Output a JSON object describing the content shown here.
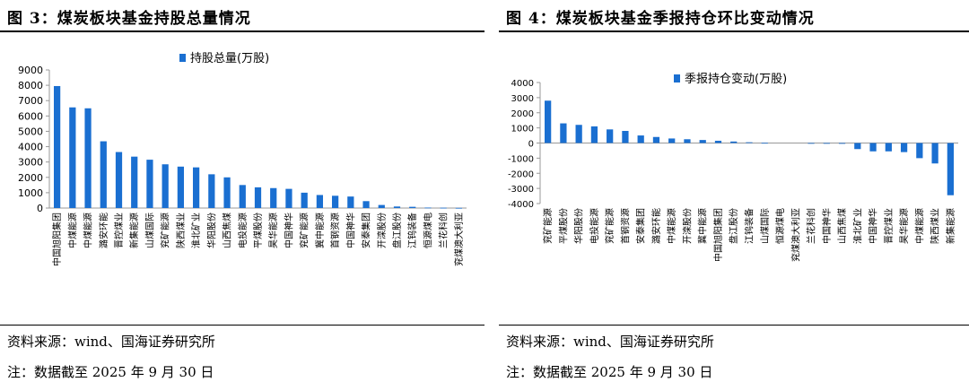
{
  "left": {
    "title": "图 3：煤炭板块基金持股总量情况",
    "source": "资料来源：wind、国海证券研究所",
    "note": "注：数据截至 2025 年 9 月 30 日"
  },
  "right": {
    "title": "图 4：煤炭板块基金季报持仓环比变动情况",
    "source": "资料来源：wind、国海证券研究所",
    "note": "注：数据截至 2025 年 9 月 30 日"
  },
  "chart_data": [
    {
      "type": "bar",
      "title": "",
      "xlabel": "",
      "ylabel": "",
      "ylim": [
        0,
        9000
      ],
      "yticks": [
        0,
        1000,
        2000,
        3000,
        4000,
        5000,
        6000,
        7000,
        8000,
        9000
      ],
      "legend_position": "top-center",
      "grid": false,
      "color": "#1a6fd1",
      "categories": [
        "中国旭阳集团",
        "中煤能源",
        "中煤能源",
        "潞安环能",
        "晋控煤业",
        "新集能源",
        "山煤国际",
        "兖矿能源",
        "陕西煤业",
        "淮北矿业",
        "华阳股份",
        "山西焦煤",
        "电投能源",
        "平煤股份",
        "昊华能源",
        "中国神华",
        "兖矿能源",
        "冀中能源",
        "首钢资源",
        "中国神华",
        "安泰集团",
        "开滦股份",
        "盘江股份",
        "江钨装备",
        "恒源煤电",
        "兰花科创",
        "兖煤澳大利亚"
      ],
      "series": [
        {
          "name": "持股总量(万股)",
          "values": [
            7950,
            6560,
            6500,
            4350,
            3650,
            3350,
            3150,
            2850,
            2700,
            2650,
            2200,
            2000,
            1500,
            1350,
            1300,
            1250,
            1000,
            850,
            800,
            750,
            450,
            200,
            100,
            80,
            30,
            20,
            10
          ]
        }
      ]
    },
    {
      "type": "bar",
      "title": "",
      "xlabel": "",
      "ylabel": "",
      "ylim": [
        -4000,
        4000
      ],
      "yticks": [
        -4000,
        -3000,
        -2000,
        -1000,
        0,
        1000,
        2000,
        3000,
        4000
      ],
      "legend_position": "top-center",
      "grid": false,
      "color": "#1a6fd1",
      "categories": [
        "兖矿能源",
        "平煤股份",
        "华阳股份",
        "电投能源",
        "兖矿能源",
        "首钢资源",
        "安泰集团",
        "潞安环能",
        "中煤能源",
        "开滦股份",
        "冀中能源",
        "中国旭阳集团",
        "盘江股份",
        "江钨装备",
        "山煤国际",
        "恒源煤电",
        "兖煤澳大利亚",
        "兰花科创",
        "中国神华",
        "山西焦煤",
        "淮北矿业",
        "中国神华",
        "晋控煤业",
        "昊华能源",
        "中煤能源",
        "陕西煤业",
        "新集能源"
      ],
      "series": [
        {
          "name": "季报持仓变动(万股)",
          "values": [
            2800,
            1300,
            1200,
            1100,
            900,
            800,
            500,
            400,
            300,
            250,
            200,
            150,
            100,
            50,
            10,
            0,
            0,
            -10,
            -20,
            -50,
            -400,
            -550,
            -550,
            -600,
            -1000,
            -1350,
            -3450
          ]
        }
      ]
    }
  ]
}
